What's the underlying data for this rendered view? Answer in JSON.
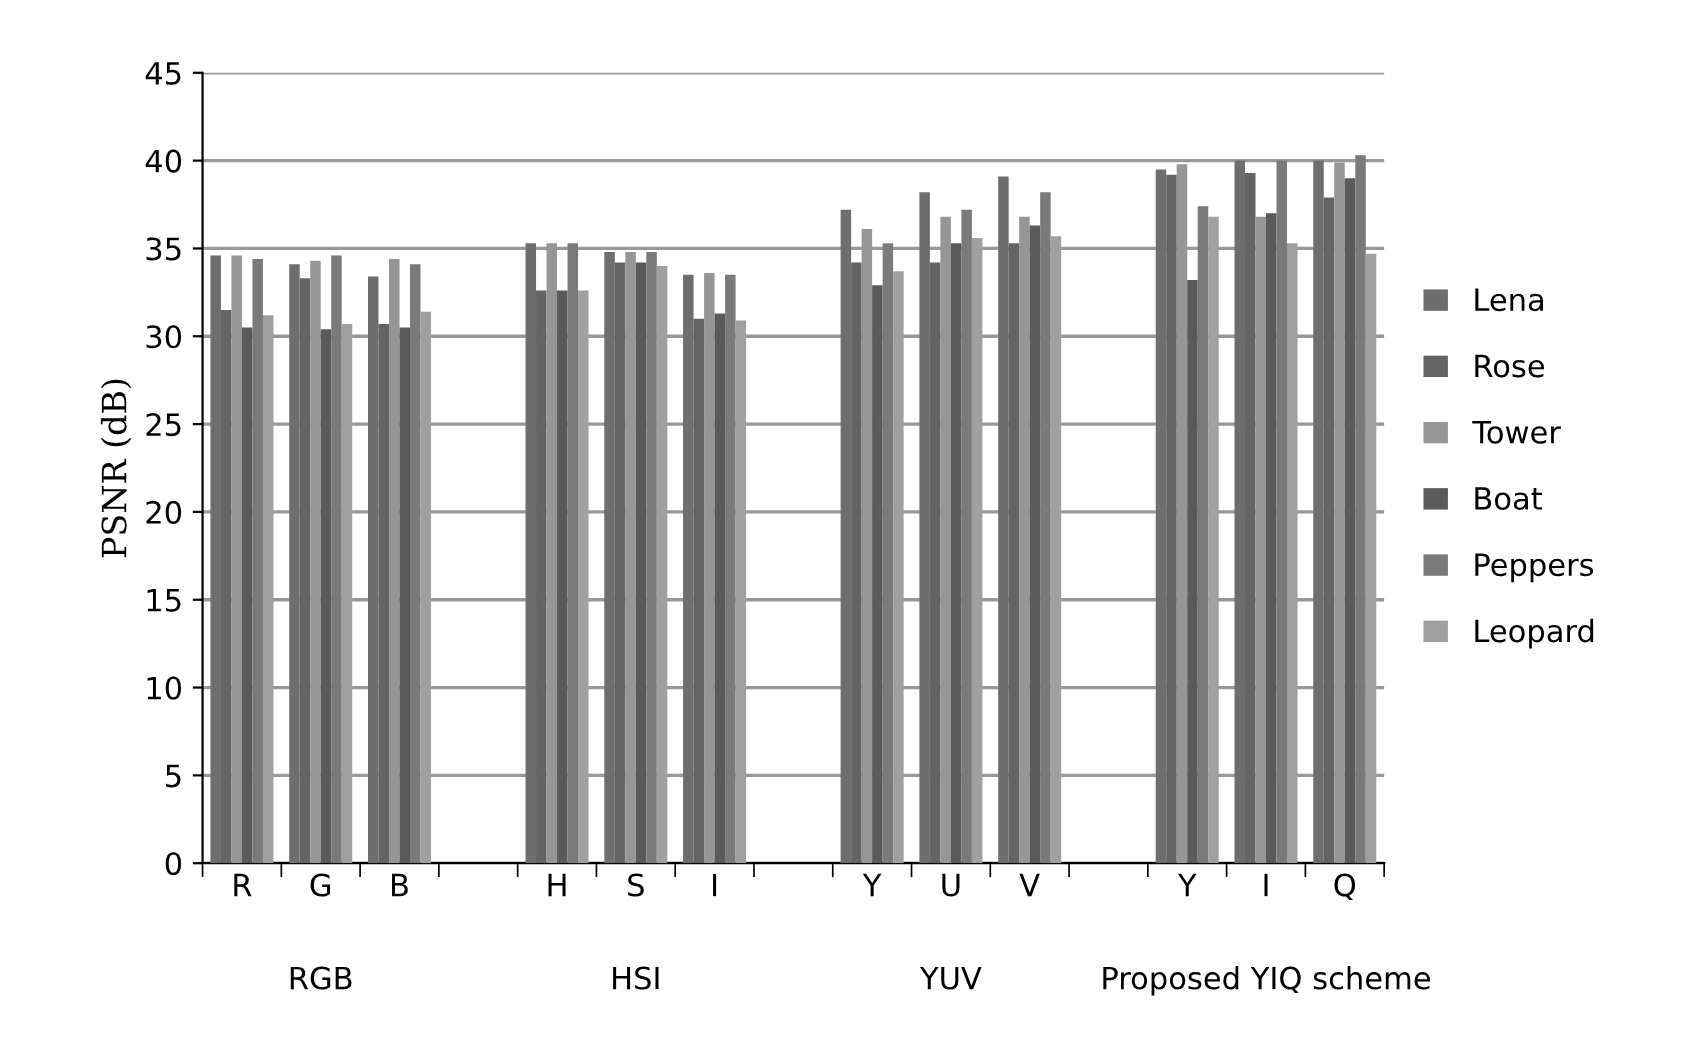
{
  "chart_data": {
    "type": "bar",
    "ylabel": "PSNR (dB)",
    "categories": [
      "R",
      "G",
      "B",
      null,
      "H",
      "S",
      "I",
      null,
      "Y",
      "U",
      "V",
      null,
      "Y",
      "I",
      "Q"
    ],
    "annotations": [
      "RGB",
      "HSI",
      "YUV",
      "Proposed YIQ scheme"
    ],
    "ylim": [
      0,
      45
    ],
    "yticks": [
      0,
      5,
      10,
      15,
      20,
      25,
      30,
      35,
      40,
      45
    ],
    "grid": "y",
    "legend": "right",
    "series": [
      {
        "name": "Lena",
        "color": "#6e6e6e",
        "values": [
          34.6,
          34.1,
          33.4,
          null,
          35.3,
          34.8,
          33.5,
          null,
          37.2,
          38.2,
          39.1,
          null,
          39.5,
          40.0,
          40.0
        ]
      },
      {
        "name": "Rose",
        "color": "#646464",
        "values": [
          31.5,
          33.3,
          30.7,
          null,
          32.6,
          34.2,
          31.0,
          null,
          34.2,
          34.2,
          35.3,
          null,
          39.2,
          39.3,
          37.9
        ]
      },
      {
        "name": "Tower",
        "color": "#969696",
        "values": [
          34.6,
          34.3,
          34.4,
          null,
          35.3,
          34.8,
          33.6,
          null,
          36.1,
          36.8,
          36.8,
          null,
          39.8,
          36.8,
          39.9
        ]
      },
      {
        "name": "Boat",
        "color": "#5a5a5a",
        "values": [
          30.5,
          30.4,
          30.5,
          null,
          32.6,
          34.2,
          31.3,
          null,
          32.9,
          35.3,
          36.3,
          null,
          33.2,
          37.0,
          39.0
        ]
      },
      {
        "name": "Peppers",
        "color": "#7a7a7a",
        "values": [
          34.4,
          34.6,
          34.1,
          null,
          35.3,
          34.8,
          33.5,
          null,
          35.3,
          37.2,
          38.2,
          null,
          37.4,
          40.0,
          40.3
        ]
      },
      {
        "name": "Leopard",
        "color": "#a0a0a0",
        "values": [
          31.2,
          30.7,
          31.4,
          null,
          32.6,
          34.0,
          30.9,
          null,
          33.7,
          35.6,
          35.7,
          null,
          36.8,
          35.3,
          34.7
        ]
      }
    ]
  }
}
